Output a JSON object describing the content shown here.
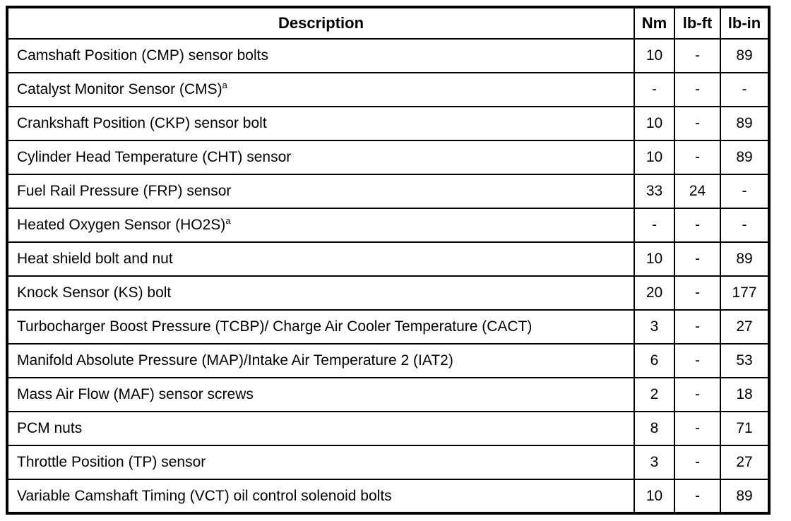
{
  "colors": {
    "border": "#000000",
    "background": "#ffffff",
    "text": "#000000"
  },
  "table": {
    "headers": [
      "Description",
      "Nm",
      "lb-ft",
      "lb-in"
    ],
    "rows": [
      {
        "description": "Camshaft Position (CMP) sensor bolts",
        "sup": "",
        "nm": "10",
        "lb_ft": "-",
        "lb_in": "89"
      },
      {
        "description": "Catalyst Monitor Sensor (CMS)",
        "sup": "a",
        "nm": "-",
        "lb_ft": "-",
        "lb_in": "-"
      },
      {
        "description": "Crankshaft Position (CKP) sensor bolt",
        "sup": "",
        "nm": "10",
        "lb_ft": "-",
        "lb_in": "89"
      },
      {
        "description": "Cylinder Head Temperature (CHT) sensor",
        "sup": "",
        "nm": "10",
        "lb_ft": "-",
        "lb_in": "89"
      },
      {
        "description": "Fuel Rail Pressure (FRP) sensor",
        "sup": "",
        "nm": "33",
        "lb_ft": "24",
        "lb_in": "-"
      },
      {
        "description": "Heated Oxygen Sensor (HO2S)",
        "sup": "a",
        "nm": "-",
        "lb_ft": "-",
        "lb_in": "-"
      },
      {
        "description": "Heat shield bolt and nut",
        "sup": "",
        "nm": "10",
        "lb_ft": "-",
        "lb_in": "89"
      },
      {
        "description": "Knock Sensor (KS) bolt",
        "sup": "",
        "nm": "20",
        "lb_ft": "-",
        "lb_in": "177"
      },
      {
        "description": "Turbocharger Boost Pressure (TCBP)/ Charge Air Cooler Temperature (CACT)",
        "sup": "",
        "nm": "3",
        "lb_ft": "-",
        "lb_in": "27"
      },
      {
        "description": "Manifold Absolute Pressure (MAP)/Intake Air Temperature 2 (IAT2)",
        "sup": "",
        "nm": "6",
        "lb_ft": "-",
        "lb_in": "53"
      },
      {
        "description": "Mass Air Flow (MAF) sensor screws",
        "sup": "",
        "nm": "2",
        "lb_ft": "-",
        "lb_in": "18"
      },
      {
        "description": "PCM nuts",
        "sup": "",
        "nm": "8",
        "lb_ft": "-",
        "lb_in": "71"
      },
      {
        "description": "Throttle Position (TP) sensor",
        "sup": "",
        "nm": "3",
        "lb_ft": "-",
        "lb_in": "27"
      },
      {
        "description": "Variable Camshaft Timing (VCT) oil control solenoid bolts",
        "sup": "",
        "nm": "10",
        "lb_ft": "-",
        "lb_in": "89"
      }
    ]
  }
}
